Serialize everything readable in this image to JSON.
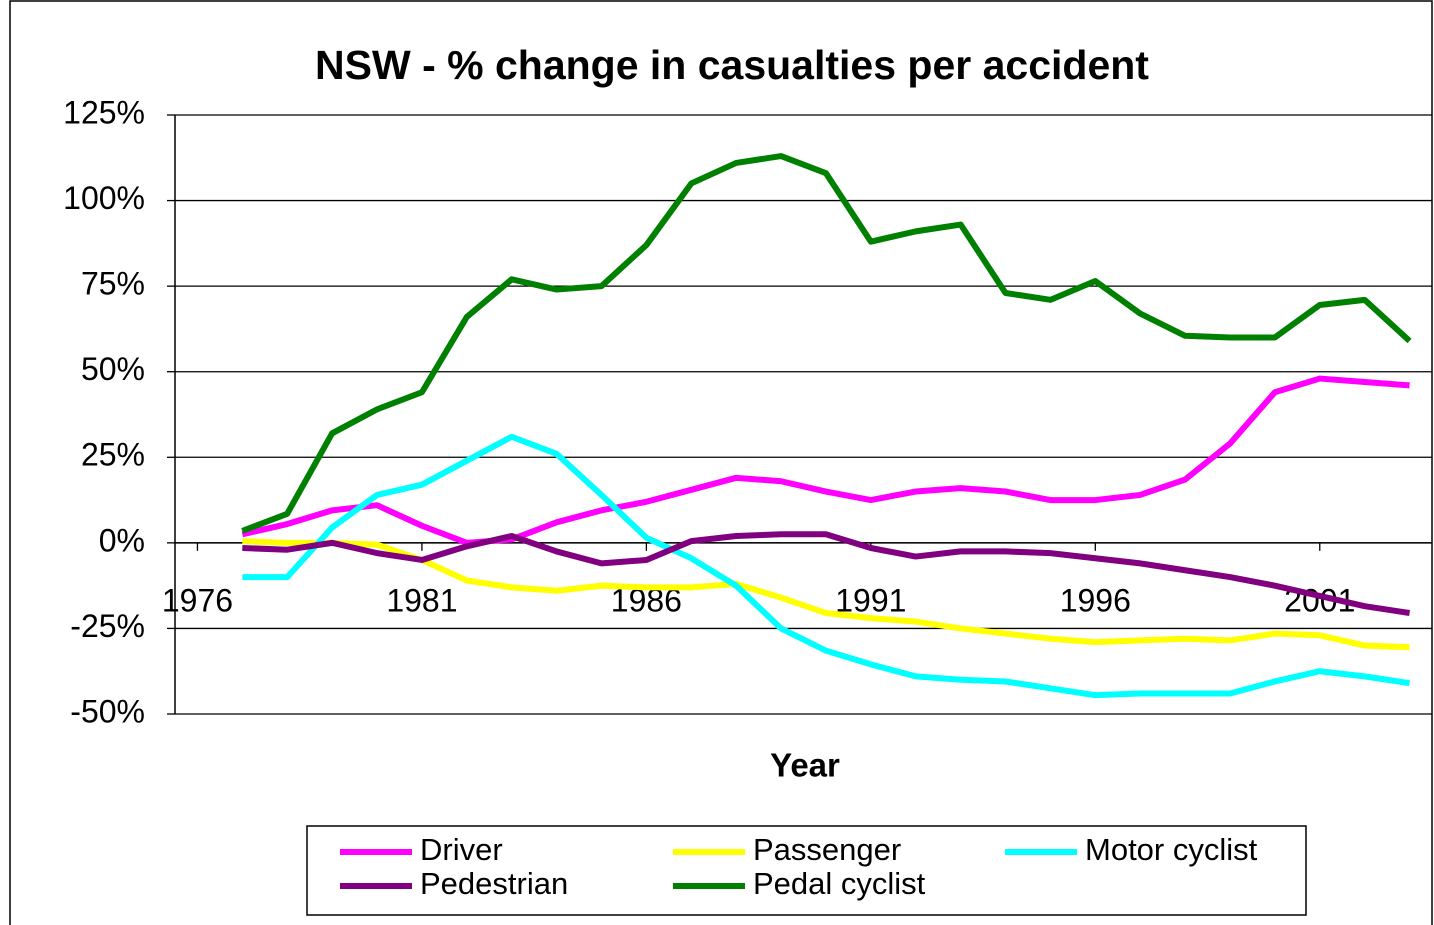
{
  "chart_data": {
    "type": "line",
    "title": "NSW - % change in casualties per accident",
    "x_label": "Year",
    "x": [
      1977,
      1978,
      1979,
      1980,
      1981,
      1982,
      1983,
      1984,
      1985,
      1986,
      1987,
      1988,
      1989,
      1990,
      1991,
      1992,
      1993,
      1994,
      1995,
      1996,
      1997,
      1998,
      1999,
      2000,
      2001,
      2002,
      2003
    ],
    "xlim": [
      1975.5,
      2003.5
    ],
    "xticks": [
      1976,
      1981,
      1986,
      1991,
      1996,
      2001
    ],
    "ylim": [
      -50,
      125
    ],
    "yticks": [
      {
        "value": -50,
        "label": "-50%"
      },
      {
        "value": -25,
        "label": "-25%"
      },
      {
        "value": 0,
        "label": "0%"
      },
      {
        "value": 25,
        "label": "25%"
      },
      {
        "value": 50,
        "label": "50%"
      },
      {
        "value": 75,
        "label": "75%"
      },
      {
        "value": 100,
        "label": "100%"
      },
      {
        "value": 125,
        "label": "125%"
      }
    ],
    "grid": true,
    "legend": "bottom",
    "series": [
      {
        "name": "Driver",
        "color": "#ff00ff",
        "values": [
          2.5,
          5.5,
          9.5,
          11,
          5,
          0,
          1,
          6,
          9.5,
          12,
          15.5,
          19,
          18,
          15,
          12.5,
          15,
          16,
          15,
          12.5,
          12.5,
          14,
          18.5,
          29,
          44,
          48,
          47,
          46
        ]
      },
      {
        "name": "Passenger",
        "color": "#ffff00",
        "values": [
          0.5,
          0,
          0,
          -0.5,
          -5,
          -11,
          -13,
          -14,
          -12.5,
          -13,
          -13,
          -12,
          -16,
          -20.5,
          -22,
          -23,
          -25,
          -26.5,
          -28,
          -29,
          -28.5,
          -28,
          -28.5,
          -26.5,
          -27,
          -30,
          -30.5
        ]
      },
      {
        "name": "Motor cyclist",
        "color": "#00ffff",
        "values": [
          -10,
          -10,
          4.5,
          14,
          17,
          24,
          31,
          26,
          14,
          1.5,
          -4.5,
          -12.5,
          -25,
          -31.5,
          -35.5,
          -39,
          -40,
          -40.5,
          -42.5,
          -44.5,
          -44,
          -44,
          -44,
          -40.5,
          -37.5,
          -39,
          -41
        ]
      },
      {
        "name": "Pedestrian",
        "color": "#800080",
        "values": [
          -1.5,
          -2,
          0,
          -3,
          -5,
          -1,
          2,
          -2.5,
          -6,
          -5,
          0.5,
          2,
          2.5,
          2.5,
          -1.5,
          -4,
          -2.5,
          -2.5,
          -3,
          -4.5,
          -6,
          -8,
          -10,
          -12.5,
          -15.5,
          -18.5,
          -20.5
        ]
      },
      {
        "name": "Pedal cyclist",
        "color": "#008000",
        "values": [
          3.5,
          8.5,
          32,
          39,
          44,
          66,
          77,
          74,
          75,
          87,
          105,
          111,
          113,
          108,
          88,
          91,
          93,
          73,
          71,
          76.5,
          67,
          60.5,
          60,
          60,
          69.5,
          71,
          59
        ]
      }
    ]
  }
}
